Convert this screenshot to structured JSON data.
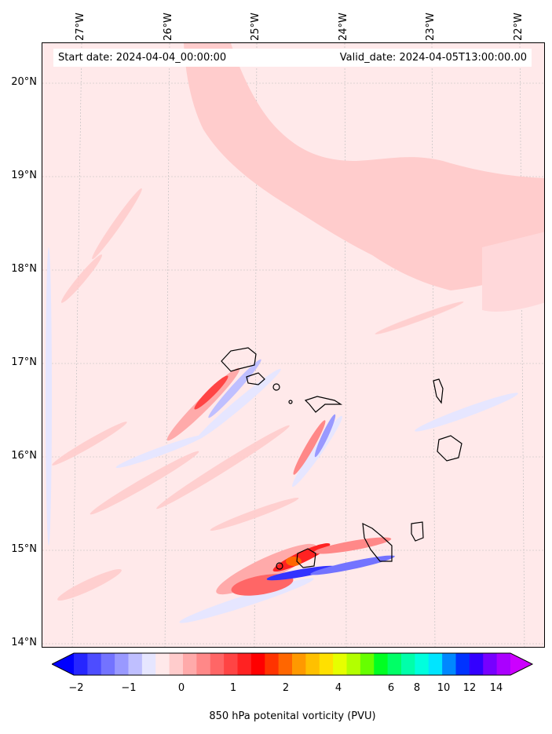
{
  "dates": {
    "start": "Start date: 2024-04-04_00:00:00",
    "valid": "Valid_date: 2024-04-05T13:00:00.00"
  },
  "axes": {
    "lat_labels": [
      "20°N",
      "19°N",
      "18°N",
      "17°N",
      "16°N",
      "15°N",
      "14°N"
    ],
    "lon_labels": [
      "27°W",
      "26°W",
      "25°W",
      "24°W",
      "23°W",
      "22°W"
    ]
  },
  "colorbar": {
    "label": "850 hPa potenital vorticity (PVU)",
    "tick_labels": [
      "−2",
      "−1",
      "0",
      "1",
      "2",
      "4",
      "6",
      "8",
      "10",
      "12",
      "14"
    ],
    "colors": [
      "#0000ff",
      "#2626ff",
      "#4d4dff",
      "#7373ff",
      "#9999ff",
      "#bfbfff",
      "#e6e6ff",
      "#ffe9ea",
      "#ffcccc",
      "#ffaaaa",
      "#ff8888",
      "#ff6666",
      "#ff4444",
      "#ff2222",
      "#ff0000",
      "#ff3300",
      "#ff6600",
      "#ff9900",
      "#ffc000",
      "#ffe000",
      "#e6ff00",
      "#b3ff00",
      "#66ff00",
      "#00ff22",
      "#00ff66",
      "#00ffaa",
      "#00ffdd",
      "#00e5ff",
      "#0088ff",
      "#0033ff",
      "#3300ff",
      "#7700ff",
      "#aa00ff",
      "#cc00ff"
    ]
  },
  "colors": {
    "background_pv": "#ffe9ea",
    "band_pv": "#ffcccc",
    "positive": "#ff4444",
    "negative": "#3333ff",
    "coast": "#000000"
  }
}
